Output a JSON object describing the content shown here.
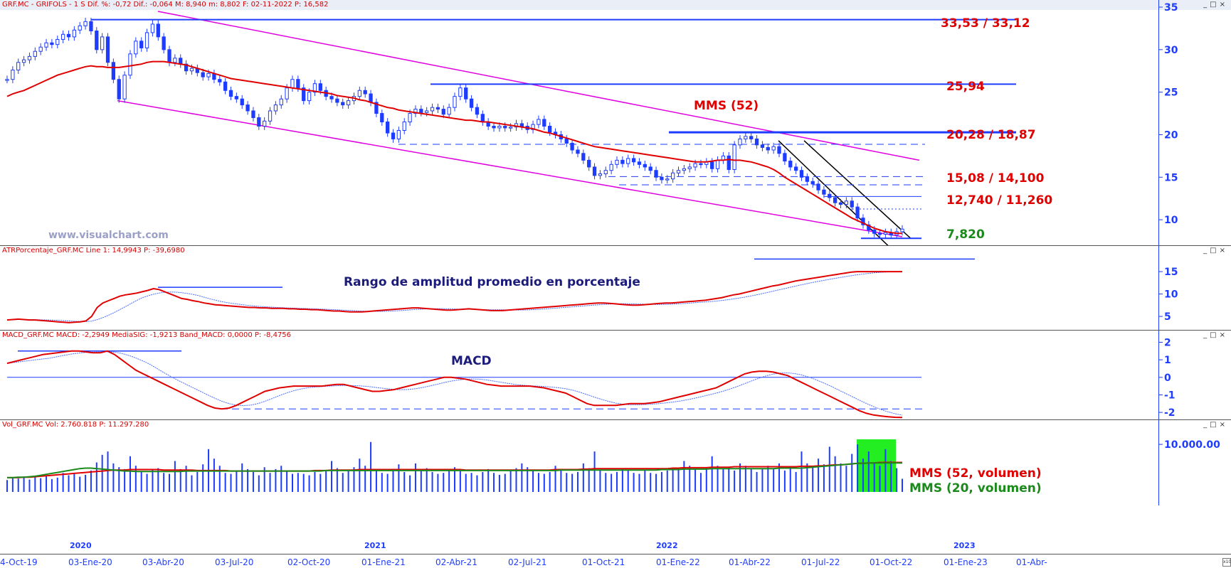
{
  "headers": {
    "price": "GRF.MC - GRIFOLS - 1 S Dif. %: -0,72 Dif.: -0,064 M: 8,940 m: 8,802 F: 02-11-2022 P: 16,582",
    "atr": "ATRPorcentaje_GRF.MC Line 1: 14,9943 P: -39,6980",
    "macd": "MACD_GRF.MC MACD: -2,2949 MediaSIG: -1,9213 Band_MACD: 0,0000 P: -8,4756",
    "vol": "Vol_GRF.MC Vol: 2.760.818 P: 11.297.280"
  },
  "watermark": "www.visualchart.com",
  "annotations": {
    "mms52": "MMS (52)",
    "atr_title": "Rango de amplitud promedio en porcentaje",
    "macd_title": "MACD",
    "mms52_vol": "MMS (52, volumen)",
    "mms20_vol": "MMS (20, volumen)"
  },
  "levels": [
    {
      "label": "33,53 / 33,12",
      "value": 33.3,
      "color": "#e10000"
    },
    {
      "label": "25,94",
      "value": 25.94,
      "color": "#e10000"
    },
    {
      "label": "20,28 / 18,87",
      "value": 20.28,
      "color": "#e10000"
    },
    {
      "label": "15,08 / 14,100",
      "value": 15.08,
      "color": "#e10000"
    },
    {
      "label": "12,740 / 11,260",
      "value": 12.74,
      "color": "#e10000"
    },
    {
      "label": "7,820",
      "value": 7.82,
      "color": "#1a8a1a"
    }
  ],
  "x_labels": [
    "4-Oct-19",
    "03-Ene-20",
    "03-Abr-20",
    "03-Jul-20",
    "02-Oct-20",
    "01-Ene-21",
    "02-Abr-21",
    "02-Jul-21",
    "01-Oct-21",
    "01-Ene-22",
    "01-Abr-22",
    "01-Jul-22",
    "01-Oct-22",
    "01-Ene-23",
    "01-Abr-"
  ],
  "year_labels": [
    "2020",
    "2021",
    "2022",
    "2023"
  ],
  "colors": {
    "candle": "#1e3cff",
    "ma": "#e10000",
    "channel": "#e000e0",
    "axis": "#1e3cff",
    "signal": "#4a6cff",
    "vol_ma20": "#1a8a1a",
    "highlight": "#22ee22"
  },
  "chart_data": [
    {
      "type": "line",
      "name": "price",
      "xlabel": "",
      "ylabel": "",
      "yticks": [
        10,
        15,
        20,
        25,
        30,
        35
      ],
      "ylim": [
        7,
        35
      ],
      "x_weeks_start": "2019-10-04",
      "close": [
        26.5,
        27.6,
        28.5,
        28.8,
        29.2,
        29.8,
        30.3,
        30.8,
        30.6,
        31.2,
        31.8,
        31.5,
        32.3,
        32.8,
        33.3,
        32.2,
        30.0,
        31.5,
        28.5,
        26.5,
        24.2,
        27.0,
        29.5,
        31.0,
        30.2,
        32.0,
        33.0,
        31.5,
        30.0,
        28.5,
        29.0,
        28.3,
        27.5,
        27.8,
        27.3,
        26.8,
        27.2,
        26.5,
        26.2,
        25.2,
        24.5,
        24.2,
        23.5,
        22.8,
        22.0,
        21.0,
        21.6,
        22.8,
        23.5,
        24.2,
        25.5,
        26.5,
        25.5,
        24.0,
        25.0,
        26.0,
        25.2,
        24.5,
        24.2,
        23.8,
        23.5,
        24.0,
        24.5,
        25.2,
        24.8,
        23.8,
        22.5,
        21.5,
        20.2,
        19.5,
        20.5,
        21.5,
        22.5,
        23.0,
        22.6,
        22.8,
        23.2,
        23.0,
        22.4,
        23.2,
        24.5,
        25.5,
        24.2,
        23.2,
        22.4,
        21.5,
        21.0,
        20.8,
        21.0,
        20.8,
        20.9,
        21.3,
        21.0,
        20.6,
        21.2,
        21.8,
        21.0,
        20.3,
        20.0,
        19.5,
        19.0,
        18.2,
        17.8,
        17.0,
        16.2,
        15.2,
        15.4,
        15.8,
        16.5,
        17.0,
        16.6,
        17.2,
        16.8,
        16.5,
        16.2,
        15.8,
        15.0,
        14.7,
        14.8,
        15.5,
        15.8,
        16.0,
        16.2,
        16.6,
        16.5,
        16.8,
        16.0,
        17.0,
        17.5,
        15.9,
        18.8,
        19.5,
        19.8,
        19.5,
        18.8,
        18.5,
        18.2,
        18.6,
        17.8,
        16.9,
        16.2,
        15.8,
        15.0,
        14.5,
        14.2,
        13.5,
        13.0,
        12.6,
        12.0,
        11.8,
        12.2,
        11.5,
        10.2,
        9.4,
        8.8,
        8.4,
        8.3,
        8.5,
        8.2,
        8.6,
        8.9
      ],
      "ma52": [
        24.5,
        24.8,
        25.0,
        25.2,
        25.5,
        25.8,
        26.1,
        26.4,
        26.7,
        27.0,
        27.2,
        27.4,
        27.6,
        27.8,
        28.0,
        28.1,
        28.0,
        28.0,
        27.9,
        27.9,
        27.9,
        28.0,
        28.1,
        28.2,
        28.3,
        28.5,
        28.6,
        28.6,
        28.6,
        28.5,
        28.4,
        28.3,
        28.2,
        28.0,
        27.8,
        27.6,
        27.4,
        27.2,
        27.0,
        26.8,
        26.6,
        26.5,
        26.4,
        26.3,
        26.2,
        26.1,
        26.0,
        25.9,
        25.8,
        25.7,
        25.6,
        25.5,
        25.4,
        25.3,
        25.2,
        25.1,
        25.0,
        24.9,
        24.8,
        24.6,
        24.5,
        24.4,
        24.3,
        24.1,
        24.0,
        23.8,
        23.6,
        23.4,
        23.2,
        23.1,
        22.9,
        22.8,
        22.7,
        22.6,
        22.5,
        22.4,
        22.3,
        22.2,
        22.1,
        22.0,
        21.9,
        21.8,
        21.7,
        21.7,
        21.6,
        21.5,
        21.5,
        21.4,
        21.3,
        21.2,
        21.1,
        21.0,
        20.9,
        20.8,
        20.7,
        20.5,
        20.3,
        20.2,
        20.0,
        19.8,
        19.6,
        19.4,
        19.2,
        19.0,
        18.8,
        18.6,
        18.5,
        18.4,
        18.3,
        18.2,
        18.1,
        18.0,
        17.9,
        17.8,
        17.7,
        17.6,
        17.5,
        17.4,
        17.3,
        17.2,
        17.1,
        17.0,
        16.9,
        16.8,
        16.8,
        16.8,
        16.9,
        17.0,
        17.0,
        17.1,
        17.0,
        17.0,
        16.9,
        16.8,
        16.6,
        16.4,
        16.2,
        15.9,
        15.5,
        15.0,
        14.6,
        14.2,
        13.8,
        13.4,
        13.0,
        12.6,
        12.2,
        11.8,
        11.4,
        11.0,
        10.6,
        10.2,
        9.9,
        9.6,
        9.3,
        9.0,
        8.8,
        8.6,
        8.5,
        8.4,
        8.4
      ],
      "highlight_levels": [
        33.53,
        25.94,
        20.28,
        18.87,
        15.08,
        14.1,
        12.74,
        11.26,
        7.82
      ]
    },
    {
      "type": "line",
      "name": "ATR %",
      "yticks": [
        5,
        10,
        15
      ],
      "ylim": [
        2,
        18.5
      ],
      "line1": [
        4.2,
        4.3,
        4.4,
        4.3,
        4.2,
        4.2,
        4.1,
        4.0,
        3.9,
        3.8,
        3.7,
        3.6,
        3.7,
        3.8,
        4.0,
        5.0,
        7.0,
        8.0,
        8.5,
        9.0,
        9.5,
        9.8,
        10.0,
        10.2,
        10.5,
        10.8,
        11.2,
        11.0,
        10.5,
        10.0,
        9.5,
        9.0,
        8.8,
        8.5,
        8.3,
        8.0,
        7.8,
        7.6,
        7.5,
        7.4,
        7.3,
        7.2,
        7.1,
        7.0,
        7.0,
        6.9,
        6.9,
        6.8,
        6.8,
        6.8,
        6.7,
        6.7,
        6.6,
        6.6,
        6.5,
        6.5,
        6.4,
        6.3,
        6.2,
        6.2,
        6.1,
        6.0,
        6.0,
        6.0,
        6.1,
        6.2,
        6.3,
        6.4,
        6.5,
        6.6,
        6.7,
        6.8,
        6.9,
        6.9,
        6.8,
        6.7,
        6.6,
        6.5,
        6.4,
        6.4,
        6.5,
        6.6,
        6.7,
        6.6,
        6.5,
        6.4,
        6.3,
        6.3,
        6.3,
        6.4,
        6.5,
        6.6,
        6.7,
        6.8,
        6.9,
        7.0,
        7.1,
        7.2,
        7.3,
        7.4,
        7.5,
        7.6,
        7.7,
        7.8,
        7.9,
        8.0,
        8.0,
        7.9,
        7.8,
        7.7,
        7.6,
        7.5,
        7.5,
        7.6,
        7.7,
        7.8,
        7.9,
        8.0,
        8.0,
        8.1,
        8.2,
        8.3,
        8.4,
        8.5,
        8.6,
        8.8,
        9.0,
        9.2,
        9.5,
        9.8,
        10.0,
        10.3,
        10.6,
        10.9,
        11.2,
        11.5,
        11.8,
        12.0,
        12.3,
        12.6,
        12.9,
        13.1,
        13.3,
        13.5,
        13.7,
        13.9,
        14.1,
        14.3,
        14.5,
        14.7,
        14.9,
        15.0,
        15.0,
        15.0,
        15.0,
        15.0,
        15.0,
        15.0,
        15.0,
        14.99
      ],
      "signal_note": "blue dotted smoothing line"
    },
    {
      "type": "line",
      "name": "MACD",
      "yticks": [
        -2,
        -1,
        0,
        1,
        2
      ],
      "ylim": [
        -2.4,
        2.1
      ],
      "macd": [
        0.8,
        0.9,
        1.0,
        1.1,
        1.2,
        1.3,
        1.35,
        1.4,
        1.45,
        1.5,
        1.5,
        1.45,
        1.4,
        1.4,
        1.5,
        1.3,
        1.0,
        0.7,
        0.4,
        0.2,
        0.0,
        -0.2,
        -0.4,
        -0.6,
        -0.8,
        -1.0,
        -1.2,
        -1.4,
        -1.6,
        -1.75,
        -1.8,
        -1.75,
        -1.6,
        -1.4,
        -1.2,
        -1.0,
        -0.8,
        -0.7,
        -0.6,
        -0.55,
        -0.5,
        -0.5,
        -0.5,
        -0.5,
        -0.5,
        -0.45,
        -0.4,
        -0.4,
        -0.5,
        -0.6,
        -0.7,
        -0.8,
        -0.8,
        -0.75,
        -0.7,
        -0.6,
        -0.5,
        -0.4,
        -0.3,
        -0.2,
        -0.1,
        0.0,
        0.0,
        -0.05,
        -0.1,
        -0.2,
        -0.3,
        -0.4,
        -0.45,
        -0.5,
        -0.5,
        -0.5,
        -0.5,
        -0.5,
        -0.55,
        -0.6,
        -0.7,
        -0.8,
        -0.9,
        -1.1,
        -1.3,
        -1.5,
        -1.6,
        -1.6,
        -1.6,
        -1.6,
        -1.55,
        -1.5,
        -1.5,
        -1.5,
        -1.45,
        -1.4,
        -1.3,
        -1.2,
        -1.1,
        -1.0,
        -0.9,
        -0.8,
        -0.7,
        -0.6,
        -0.4,
        -0.2,
        0.0,
        0.2,
        0.3,
        0.35,
        0.35,
        0.3,
        0.2,
        0.1,
        -0.1,
        -0.3,
        -0.5,
        -0.7,
        -0.9,
        -1.1,
        -1.3,
        -1.5,
        -1.7,
        -1.9,
        -2.05,
        -2.15,
        -2.2,
        -2.25,
        -2.28,
        -2.29
      ],
      "band": 0,
      "ref_lines": [
        1.5,
        -1.8
      ]
    },
    {
      "type": "bar",
      "name": "Volumen",
      "yticks": [
        10000000
      ],
      "ytick_labels": [
        "10.000.00"
      ],
      "ylim": [
        0,
        13000000
      ],
      "values": [
        2.5,
        3.0,
        2.8,
        3.2,
        2.6,
        3.1,
        2.9,
        3.3,
        2.7,
        3.0,
        4.0,
        3.5,
        3.8,
        3.2,
        3.6,
        4.5,
        6.2,
        7.8,
        8.5,
        6.0,
        5.2,
        4.8,
        7.5,
        5.5,
        4.2,
        3.8,
        4.6,
        5.0,
        4.0,
        3.8,
        6.5,
        4.8,
        5.5,
        3.5,
        4.2,
        5.8,
        9.0,
        7.0,
        5.5,
        4.0,
        3.8,
        4.5,
        6.0,
        4.8,
        4.2,
        3.5,
        5.2,
        4.0,
        4.8,
        5.5,
        4.5,
        3.8,
        4.0,
        3.8,
        3.5,
        4.2,
        3.8,
        4.5,
        6.5,
        5.0,
        4.0,
        4.5,
        5.2,
        7.0,
        5.5,
        10.5,
        4.8,
        4.0,
        3.8,
        4.5,
        5.8,
        4.2,
        3.5,
        6.0,
        4.5,
        5.0,
        4.2,
        3.8,
        4.0,
        4.8,
        5.2,
        4.5,
        3.8,
        4.0,
        3.5,
        4.2,
        4.8,
        4.0,
        3.6,
        3.8,
        4.5,
        5.0,
        6.0,
        5.2,
        4.5,
        4.0,
        3.8,
        4.2,
        5.5,
        4.8,
        4.0,
        3.8,
        4.2,
        6.0,
        5.0,
        8.5,
        4.5,
        4.0,
        3.8,
        4.2,
        5.0,
        4.5,
        4.0,
        3.8,
        4.5,
        4.0,
        3.8,
        4.2,
        4.5,
        5.0,
        4.8,
        6.5,
        5.5,
        4.8,
        4.0,
        5.0,
        7.5,
        5.5,
        4.8,
        5.2,
        4.5,
        6.0,
        5.5,
        4.8,
        4.2,
        5.0,
        5.5,
        4.8,
        6.0,
        4.5,
        5.0,
        4.2,
        8.5,
        6.0,
        5.5,
        7.0,
        5.8,
        9.5,
        7.5,
        6.0,
        5.5,
        8.0,
        10.0,
        7.0,
        8.5,
        6.0,
        5.5,
        9.0,
        6.5,
        5.0,
        2.76
      ],
      "values_unit": "millions",
      "ma52": [
        3.0,
        3.0,
        3.0,
        3.1,
        3.1,
        3.2,
        3.3,
        3.4,
        3.5,
        3.6,
        3.7,
        3.8,
        3.9,
        4.0,
        4.1,
        4.2,
        4.3,
        4.4,
        4.5,
        4.6,
        4.6,
        4.6,
        4.7,
        4.7,
        4.7,
        4.7,
        4.7,
        4.7,
        4.6,
        4.6,
        4.6,
        4.6,
        4.6,
        4.6,
        4.5,
        4.5,
        4.5,
        4.5,
        4.5,
        4.5,
        4.4,
        4.4,
        4.4,
        4.4,
        4.4,
        4.4,
        4.4,
        4.4,
        4.4,
        4.4,
        4.4,
        4.4,
        4.4,
        4.4,
        4.4,
        4.5,
        4.5,
        4.5,
        4.6,
        4.6,
        4.6,
        4.6,
        4.6,
        4.7,
        4.7,
        4.7,
        4.7,
        4.7,
        4.7,
        4.7,
        4.7,
        4.7,
        4.7,
        4.7,
        4.7,
        4.7,
        4.7,
        4.7,
        4.7,
        4.7,
        4.7,
        4.7,
        4.6,
        4.6,
        4.6,
        4.6,
        4.6,
        4.6,
        4.6,
        4.6,
        4.6,
        4.6,
        4.6,
        4.6,
        4.6,
        4.6,
        4.6,
        4.6,
        4.7,
        4.7,
        4.7,
        4.7,
        4.7,
        4.8,
        4.8,
        4.9,
        4.9,
        4.9,
        4.9,
        4.9,
        4.9,
        4.9,
        4.9,
        4.9,
        4.9,
        4.9,
        4.9,
        4.9,
        4.9,
        5.0,
        5.0,
        5.1,
        5.1,
        5.1,
        5.1,
        5.1,
        5.2,
        5.2,
        5.2,
        5.2,
        5.3,
        5.3,
        5.3,
        5.3,
        5.3,
        5.3,
        5.3,
        5.3,
        5.3,
        5.3,
        5.3,
        5.3,
        5.4,
        5.4,
        5.4,
        5.5,
        5.5,
        5.6,
        5.7,
        5.7,
        5.8,
        5.9,
        6.0,
        6.0,
        6.1,
        6.1,
        6.2,
        6.2,
        6.2,
        6.2,
        6.2
      ],
      "ma20": [
        3.0,
        3.0,
        3.1,
        3.1,
        3.2,
        3.3,
        3.5,
        3.7,
        3.9,
        4.1,
        4.3,
        4.5,
        4.7,
        4.9,
        5.0,
        5.0,
        4.9,
        4.8,
        4.7,
        4.6,
        4.5,
        4.4,
        4.4,
        4.3,
        4.3,
        4.3,
        4.3,
        4.3,
        4.3,
        4.3,
        4.3,
        4.3,
        4.4,
        4.4,
        4.4,
        4.4,
        4.4,
        4.4,
        4.4,
        4.4,
        4.4,
        4.4,
        4.4,
        4.4,
        4.4,
        4.4,
        4.4,
        4.4,
        4.4,
        4.4,
        4.4,
        4.4,
        4.4,
        4.4,
        4.4,
        4.4,
        4.4,
        4.5,
        4.5,
        4.5,
        4.5,
        4.5,
        4.5,
        4.5,
        4.5,
        4.5,
        4.5,
        4.5,
        4.5,
        4.5,
        4.5,
        4.5,
        4.5,
        4.5,
        4.5,
        4.5,
        4.5,
        4.5,
        4.5,
        4.5,
        4.5,
        4.5,
        4.5,
        4.5,
        4.5,
        4.5,
        4.5,
        4.5,
        4.5,
        4.5,
        4.5,
        4.5,
        4.5,
        4.5,
        4.5,
        4.5,
        4.5,
        4.5,
        4.5,
        4.6,
        4.6,
        4.6,
        4.6,
        4.6,
        4.6,
        4.6,
        4.6,
        4.6,
        4.6,
        4.6,
        4.6,
        4.6,
        4.6,
        4.6,
        4.6,
        4.6,
        4.6,
        4.7,
        4.7,
        4.7,
        4.7,
        4.8,
        4.8,
        4.8,
        4.8,
        4.8,
        4.9,
        4.9,
        4.9,
        4.9,
        4.9,
        4.9,
        4.9,
        4.9,
        4.9,
        4.9,
        4.9,
        4.9,
        5.0,
        5.0,
        5.0,
        5.0,
        5.0,
        5.1,
        5.2,
        5.3,
        5.4,
        5.5,
        5.6,
        5.7,
        5.8,
        5.9,
        6.0,
        6.0,
        6.1,
        6.1,
        6.1,
        6.1,
        6.1,
        6.1,
        6.1
      ]
    }
  ]
}
